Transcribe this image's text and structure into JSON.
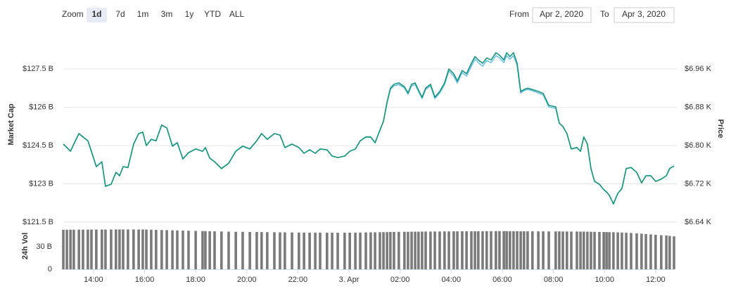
{
  "toolbar": {
    "zoom_label": "Zoom",
    "options": [
      "1d",
      "7d",
      "1m",
      "3m",
      "1y",
      "YTD",
      "ALL"
    ],
    "selected": 0,
    "from_label": "From",
    "from": "Apr 2, 2020",
    "to_label": "To",
    "to": "Apr 3, 2020"
  },
  "chart_data": {
    "type": "line",
    "x": [
      12.82,
      12.96,
      13.1,
      13.23,
      13.43,
      13.59,
      13.78,
      13.92,
      14.11,
      14.33,
      14.47,
      14.69,
      14.88,
      15.02,
      15.16,
      15.35,
      15.57,
      15.77,
      15.93,
      16.07,
      16.26,
      16.45,
      16.67,
      16.87,
      17.09,
      17.28,
      17.5,
      17.72,
      18.0,
      18.27,
      18.38,
      18.55,
      18.74,
      19.01,
      19.29,
      19.57,
      19.84,
      20.12,
      20.39,
      20.58,
      20.8,
      21.08,
      21.3,
      21.49,
      21.77,
      22.04,
      22.24,
      22.46,
      22.68,
      22.87,
      23.14,
      23.34,
      23.56,
      23.83,
      24.03,
      24.25,
      24.44,
      24.66,
      24.85,
      25.02,
      25.21,
      25.35,
      25.49,
      25.62,
      25.76,
      25.95,
      26.17,
      26.31,
      26.45,
      26.59,
      26.72,
      26.86,
      27.0,
      27.19,
      27.36,
      27.55,
      27.74,
      27.91,
      28.1,
      28.24,
      28.43,
      28.6,
      28.79,
      28.93,
      29.06,
      29.23,
      29.39,
      29.56,
      29.75,
      29.89,
      30.06,
      30.17,
      30.3,
      30.44,
      30.58,
      30.72,
      30.85,
      30.99,
      31.18,
      31.41,
      31.6,
      31.82,
      32.09,
      32.23,
      32.37,
      32.53,
      32.7,
      32.92,
      33.06,
      33.19,
      33.33,
      33.47,
      33.61,
      33.8,
      33.97,
      34.08,
      34.19,
      34.35,
      34.52,
      34.68,
      34.85,
      35.04,
      35.26,
      35.45,
      35.62,
      35.81,
      36.0,
      36.22,
      36.42,
      36.55,
      36.72
    ],
    "series": [
      {
        "name": "Market Cap",
        "color": "#6cc0e8",
        "axis": "y",
        "values": [
          124.56,
          124.42,
          124.28,
          124.56,
          124.97,
          124.83,
          124.69,
          124.28,
          123.67,
          123.87,
          122.9,
          122.99,
          123.45,
          123.32,
          123.67,
          123.65,
          124.56,
          124.97,
          125.02,
          124.5,
          124.75,
          124.69,
          125.3,
          125.19,
          124.47,
          124.61,
          123.98,
          124.23,
          124.36,
          124.28,
          124.42,
          124.0,
          123.87,
          123.59,
          123.81,
          124.28,
          124.47,
          124.36,
          124.69,
          124.97,
          124.75,
          124.97,
          124.91,
          124.42,
          124.56,
          124.42,
          124.2,
          124.34,
          124.2,
          124.36,
          124.34,
          124.09,
          124.03,
          124.09,
          124.28,
          124.36,
          124.69,
          124.83,
          124.83,
          124.61,
          125.11,
          125.46,
          126.15,
          126.7,
          126.84,
          126.89,
          126.76,
          126.51,
          126.84,
          126.89,
          126.62,
          126.34,
          126.7,
          126.84,
          126.34,
          126.56,
          126.89,
          127.42,
          127.22,
          126.95,
          127.36,
          127.22,
          127.61,
          127.89,
          127.75,
          127.61,
          127.83,
          127.75,
          128.02,
          127.94,
          127.75,
          128.02,
          127.89,
          128.02,
          127.64,
          126.56,
          126.65,
          126.7,
          126.65,
          126.56,
          126.48,
          126.01,
          125.96,
          125.38,
          125.24,
          124.97,
          124.36,
          124.42,
          124.28,
          124.83,
          124.56,
          123.59,
          123.1,
          122.99,
          122.77,
          122.68,
          122.55,
          122.22,
          122.63,
          122.82,
          123.59,
          123.65,
          123.45,
          123.04,
          123.32,
          123.32,
          123.1,
          123.18,
          123.32,
          123.59,
          123.7
        ]
      },
      {
        "name": "Price",
        "color": "#16967a",
        "axis": "y2",
        "values": [
          6.803,
          6.796,
          6.788,
          6.803,
          6.825,
          6.818,
          6.81,
          6.788,
          6.756,
          6.766,
          6.715,
          6.719,
          6.744,
          6.737,
          6.756,
          6.754,
          6.803,
          6.825,
          6.828,
          6.8,
          6.813,
          6.81,
          6.843,
          6.837,
          6.799,
          6.806,
          6.772,
          6.785,
          6.793,
          6.788,
          6.796,
          6.774,
          6.766,
          6.752,
          6.763,
          6.788,
          6.799,
          6.793,
          6.81,
          6.825,
          6.813,
          6.825,
          6.822,
          6.796,
          6.803,
          6.796,
          6.784,
          6.791,
          6.784,
          6.793,
          6.791,
          6.778,
          6.775,
          6.778,
          6.788,
          6.793,
          6.81,
          6.818,
          6.818,
          6.806,
          6.832,
          6.851,
          6.891,
          6.92,
          6.928,
          6.931,
          6.923,
          6.91,
          6.928,
          6.931,
          6.916,
          6.901,
          6.92,
          6.928,
          6.901,
          6.913,
          6.931,
          6.96,
          6.95,
          6.935,
          6.957,
          6.95,
          6.972,
          6.986,
          6.979,
          6.972,
          6.983,
          6.979,
          6.994,
          6.989,
          6.979,
          6.994,
          6.986,
          6.994,
          6.972,
          6.913,
          6.917,
          6.92,
          6.917,
          6.913,
          6.909,
          6.884,
          6.881,
          6.847,
          6.84,
          6.825,
          6.793,
          6.796,
          6.788,
          6.818,
          6.803,
          6.752,
          6.725,
          6.719,
          6.708,
          6.703,
          6.696,
          6.678,
          6.7,
          6.71,
          6.752,
          6.754,
          6.744,
          6.722,
          6.737,
          6.737,
          6.725,
          6.73,
          6.737,
          6.752,
          6.757
        ]
      },
      {
        "name": "24h Vol",
        "color": "#7a7a7a",
        "axis": "y3",
        "type": "bar",
        "values": [
          52.5,
          52.5,
          52.6,
          52.6,
          52.7,
          52.7,
          52.7,
          52.8,
          52.8,
          52.8,
          52.8,
          52.8,
          52.9,
          52.9,
          52.9,
          52.9,
          52.9,
          52.9,
          52.9,
          52.8,
          52.6,
          52.4,
          52.2,
          52.0,
          51.8,
          51.6,
          51.4,
          51.2,
          51.0,
          50.8,
          50.7,
          50.6,
          50.4,
          50.2,
          50.0,
          49.8,
          49.7,
          49.6,
          49.5,
          49.4,
          49.3,
          49.2,
          49.1,
          49.0,
          48.9,
          48.8,
          48.8,
          48.7,
          48.7,
          48.7,
          48.6,
          48.6,
          48.6,
          48.6,
          48.6,
          48.7,
          48.8,
          48.9,
          49.0,
          49.1,
          49.2,
          49.3,
          49.4,
          49.5,
          49.6,
          49.7,
          49.8,
          49.8,
          49.9,
          49.9,
          50.0,
          50.0,
          50.1,
          50.1,
          50.2,
          50.2,
          50.3,
          50.3,
          50.4,
          50.4,
          50.5,
          50.5,
          50.5,
          50.6,
          50.6,
          50.6,
          50.6,
          50.6,
          50.7,
          50.7,
          50.7,
          50.7,
          50.6,
          50.6,
          50.6,
          50.5,
          50.5,
          50.5,
          50.4,
          50.4,
          50.4,
          50.3,
          50.3,
          50.3,
          50.2,
          50.2,
          50.1,
          50.1,
          50.0,
          50.0,
          49.9,
          49.8,
          49.7,
          49.6,
          49.5,
          49.4,
          49.3,
          49.2,
          49.0,
          48.8,
          48.5,
          48.2,
          47.8,
          47.3,
          46.8,
          46.3,
          45.8,
          45.3,
          44.8,
          44.3,
          43.8
        ]
      }
    ],
    "xlim": [
      12.82,
      36.72
    ],
    "xticks": [
      {
        "value": 14,
        "label": "14:00"
      },
      {
        "value": 16,
        "label": "16:00"
      },
      {
        "value": 18,
        "label": "18:00"
      },
      {
        "value": 20,
        "label": "20:00"
      },
      {
        "value": 22,
        "label": "22:00"
      },
      {
        "value": 24,
        "label": "3. Apr"
      },
      {
        "value": 26,
        "label": "02:00"
      },
      {
        "value": 28,
        "label": "04:00"
      },
      {
        "value": 30,
        "label": "06:00"
      },
      {
        "value": 32,
        "label": "08:00"
      },
      {
        "value": 34,
        "label": "10:00"
      },
      {
        "value": 36,
        "label": "12:00"
      }
    ],
    "ylim": [
      121.5,
      128.55
    ],
    "yticks": [
      {
        "value": 121.5,
        "label": "$121.5 B"
      },
      {
        "value": 123,
        "label": "$123 B"
      },
      {
        "value": 124.5,
        "label": "$124.5 B"
      },
      {
        "value": 126,
        "label": "$126 B"
      },
      {
        "value": 127.5,
        "label": "$127.5 B"
      }
    ],
    "y2lim": [
      6.64,
      7.016
    ],
    "y2ticks": [
      {
        "value": 6.64,
        "label": "$6.64 K"
      },
      {
        "value": 6.72,
        "label": "$6.72 K"
      },
      {
        "value": 6.8,
        "label": "$6.80 K"
      },
      {
        "value": 6.88,
        "label": "$6.88 K"
      },
      {
        "value": 6.96,
        "label": "$6.96 K"
      }
    ],
    "y3lim": [
      0,
      57
    ],
    "y3ticks": [
      0,
      {
        "value": 30,
        "label": "30 B"
      }
    ],
    "grid": true
  }
}
